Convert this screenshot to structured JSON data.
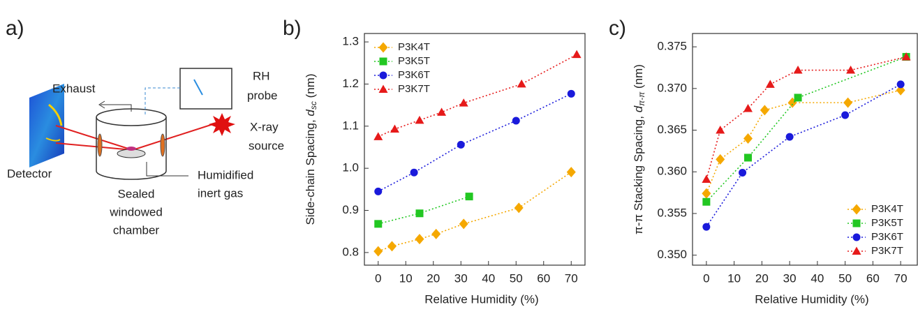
{
  "diagram": {
    "panel": "a)",
    "exhaust": "Exhaust",
    "rh_probe": [
      "RH",
      "probe"
    ],
    "xray_source": [
      "X-ray",
      "source"
    ],
    "detector": "Detector",
    "chamber": [
      "Sealed",
      "windowed",
      "chamber"
    ],
    "gas": [
      "Humidified",
      "inert gas"
    ]
  },
  "chart_data": [
    {
      "type": "line",
      "panel": "b)",
      "x_label": "Relative Humidity (%)",
      "y_label": [
        "Side-chain Spacing, ",
        "d",
        "sc",
        " (nm)"
      ],
      "xlim": [
        -5,
        75
      ],
      "ylim": [
        0.77,
        1.32
      ],
      "xticks": [
        0,
        10,
        20,
        30,
        40,
        50,
        60,
        70
      ],
      "yticks": [
        0.8,
        0.9,
        {
          "value": 1,
          "label": "1.0"
        },
        1.1,
        1.2,
        1.3
      ],
      "legend": "upper left",
      "line_style": "dotted",
      "series": [
        {
          "name": "P3K4T",
          "color": "#f5a800",
          "marker": "diamond",
          "x": [
            0,
            5,
            15,
            21,
            31,
            51,
            70
          ],
          "values": [
            0.803,
            0.815,
            0.832,
            0.844,
            0.868,
            0.906,
            0.991
          ]
        },
        {
          "name": "P3K5T",
          "color": "#22c722",
          "marker": "square",
          "x": [
            0,
            15,
            33
          ],
          "values": [
            0.868,
            0.893,
            0.933
          ]
        },
        {
          "name": "P3K6T",
          "color": "#1a1adb",
          "marker": "circle",
          "x": [
            0,
            13,
            30,
            50,
            70
          ],
          "values": [
            0.945,
            0.99,
            1.056,
            1.113,
            1.177
          ]
        },
        {
          "name": "P3K7T",
          "color": "#e61a1a",
          "marker": "triangle",
          "x": [
            0,
            6,
            15,
            23,
            31,
            52,
            72
          ],
          "values": [
            1.075,
            1.093,
            1.114,
            1.133,
            1.155,
            1.2,
            1.27
          ]
        }
      ]
    },
    {
      "type": "line",
      "panel": "c)",
      "x_label": "Relative Humidity (%)",
      "y_label": [
        "π-π Stacking Spacing, ",
        "d",
        "π-π",
        " (nm)"
      ],
      "xlim": [
        -5,
        76
      ],
      "ylim": [
        0.3488,
        0.3766
      ],
      "xticks": [
        0,
        10,
        20,
        30,
        40,
        50,
        60,
        70
      ],
      "yticks": [
        {
          "value": 0.35,
          "label": "0.350"
        },
        0.355,
        {
          "value": 0.36,
          "label": "0.360"
        },
        0.365,
        {
          "value": 0.37,
          "label": "0.370"
        },
        0.375
      ],
      "legend": "lower right",
      "line_style": "dotted",
      "series": [
        {
          "name": "P3K4T",
          "color": "#f5a800",
          "marker": "diamond",
          "x": [
            0,
            5,
            15,
            21,
            31,
            51,
            70
          ],
          "values": [
            0.3574,
            0.3615,
            0.364,
            0.3674,
            0.3683,
            0.3683,
            0.3698
          ]
        },
        {
          "name": "P3K5T",
          "color": "#22c722",
          "marker": "square",
          "x": [
            0,
            15,
            33,
            72
          ],
          "values": [
            0.3564,
            0.3617,
            0.3689,
            0.3738
          ]
        },
        {
          "name": "P3K6T",
          "color": "#1a1adb",
          "marker": "circle",
          "x": [
            0,
            13,
            30,
            50,
            70
          ],
          "values": [
            0.3534,
            0.3599,
            0.3642,
            0.3668,
            0.3705
          ]
        },
        {
          "name": "P3K7T",
          "color": "#e61a1a",
          "marker": "triangle",
          "x": [
            0,
            5,
            15,
            23,
            33,
            52,
            72
          ],
          "values": [
            0.3591,
            0.365,
            0.3676,
            0.3705,
            0.3722,
            0.3722,
            0.3738
          ]
        }
      ]
    }
  ]
}
